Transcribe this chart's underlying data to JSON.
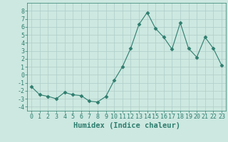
{
  "x": [
    0,
    1,
    2,
    3,
    4,
    5,
    6,
    7,
    8,
    9,
    10,
    11,
    12,
    13,
    14,
    15,
    16,
    17,
    18,
    19,
    20,
    21,
    22,
    23
  ],
  "y": [
    -1.5,
    -2.5,
    -2.7,
    -3.0,
    -2.2,
    -2.5,
    -2.6,
    -3.3,
    -3.4,
    -2.7,
    -0.7,
    1.0,
    3.3,
    6.3,
    7.8,
    5.8,
    4.7,
    3.2,
    6.5,
    3.3,
    2.2,
    4.7,
    3.3,
    1.2
  ],
  "xlabel": "Humidex (Indice chaleur)",
  "ylabel": "",
  "xlim": [
    -0.5,
    23.5
  ],
  "ylim": [
    -4.5,
    9.0
  ],
  "yticks": [
    -4,
    -3,
    -2,
    -1,
    0,
    1,
    2,
    3,
    4,
    5,
    6,
    7,
    8
  ],
  "xticks": [
    0,
    1,
    2,
    3,
    4,
    5,
    6,
    7,
    8,
    9,
    10,
    11,
    12,
    13,
    14,
    15,
    16,
    17,
    18,
    19,
    20,
    21,
    22,
    23
  ],
  "line_color": "#2e7d6e",
  "marker": "D",
  "marker_size": 2.5,
  "bg_color": "#cce8e0",
  "grid_color": "#b0ccc8",
  "tick_label_fontsize": 6.0,
  "xlabel_fontsize": 7.5
}
